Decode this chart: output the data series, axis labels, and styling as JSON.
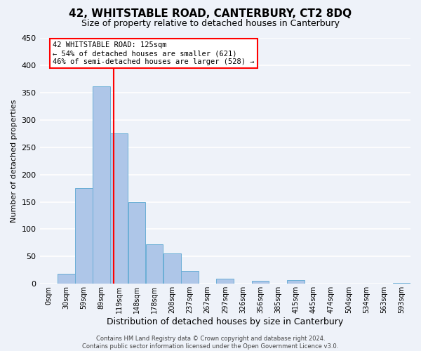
{
  "title": "42, WHITSTABLE ROAD, CANTERBURY, CT2 8DQ",
  "subtitle": "Size of property relative to detached houses in Canterbury",
  "xlabel": "Distribution of detached houses by size in Canterbury",
  "ylabel": "Number of detached properties",
  "bar_edges": [
    0,
    30,
    59,
    89,
    119,
    148,
    178,
    208,
    237,
    267,
    297,
    326,
    356,
    385,
    415,
    445,
    474,
    504,
    534,
    563,
    593
  ],
  "bar_heights": [
    0,
    18,
    175,
    362,
    275,
    150,
    72,
    55,
    23,
    0,
    10,
    0,
    6,
    0,
    7,
    0,
    0,
    0,
    0,
    0,
    2
  ],
  "bar_color": "#aec6e8",
  "bar_edgecolor": "#6aaed6",
  "vline_x": 125,
  "vline_color": "red",
  "annotation_title": "42 WHITSTABLE ROAD: 125sqm",
  "annotation_line1": "← 54% of detached houses are smaller (621)",
  "annotation_line2": "46% of semi-detached houses are larger (528) →",
  "annotation_box_color": "white",
  "annotation_box_edgecolor": "red",
  "tick_labels": [
    "0sqm",
    "30sqm",
    "59sqm",
    "89sqm",
    "119sqm",
    "148sqm",
    "178sqm",
    "208sqm",
    "237sqm",
    "267sqm",
    "297sqm",
    "326sqm",
    "356sqm",
    "385sqm",
    "415sqm",
    "445sqm",
    "474sqm",
    "504sqm",
    "534sqm",
    "563sqm",
    "593sqm"
  ],
  "ylim": [
    0,
    450
  ],
  "yticks": [
    0,
    50,
    100,
    150,
    200,
    250,
    300,
    350,
    400,
    450
  ],
  "footer_line1": "Contains HM Land Registry data © Crown copyright and database right 2024.",
  "footer_line2": "Contains public sector information licensed under the Open Government Licence v3.0.",
  "background_color": "#eef2f9",
  "grid_color": "white",
  "title_fontsize": 11,
  "subtitle_fontsize": 9,
  "xlabel_fontsize": 9,
  "ylabel_fontsize": 8,
  "tick_fontsize": 7,
  "footer_fontsize": 6
}
